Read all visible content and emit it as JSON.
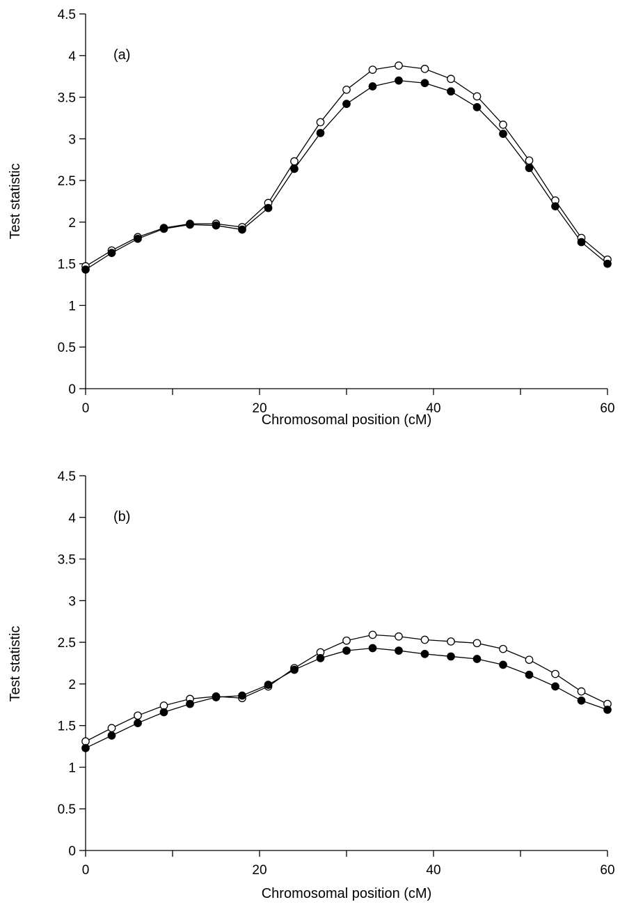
{
  "chart_data": [
    {
      "type": "line",
      "panel_label": "(a)",
      "xlabel": "Chromosomal position (cM)",
      "ylabel": "Test statistic",
      "xlim": [
        0,
        60
      ],
      "ylim": [
        0,
        4.5
      ],
      "xticks": [
        0,
        20,
        40,
        60
      ],
      "xminor": [
        10,
        30,
        50
      ],
      "yticks": [
        0,
        0.5,
        1,
        1.5,
        2,
        2.5,
        3,
        3.5,
        4,
        4.5
      ],
      "x": [
        0,
        3,
        6,
        9,
        12,
        15,
        18,
        21,
        24,
        27,
        30,
        33,
        36,
        39,
        42,
        45,
        48,
        51,
        54,
        57,
        60
      ],
      "grid": false,
      "series": [
        {
          "marker": "open-circle",
          "color": "#000000",
          "values": [
            1.47,
            1.66,
            1.82,
            1.93,
            1.98,
            1.98,
            1.94,
            2.23,
            2.73,
            3.2,
            3.59,
            3.83,
            3.88,
            3.84,
            3.72,
            3.51,
            3.17,
            2.74,
            2.26,
            1.81,
            1.55
          ]
        },
        {
          "marker": "filled-circle",
          "color": "#000000",
          "values": [
            1.43,
            1.63,
            1.8,
            1.92,
            1.97,
            1.96,
            1.91,
            2.17,
            2.64,
            3.07,
            3.42,
            3.63,
            3.7,
            3.67,
            3.57,
            3.38,
            3.06,
            2.65,
            2.19,
            1.76,
            1.5
          ]
        }
      ]
    },
    {
      "type": "line",
      "panel_label": "(b)",
      "xlabel": "Chromosomal position (cM)",
      "ylabel": "Test statistic",
      "xlim": [
        0,
        60
      ],
      "ylim": [
        0,
        4.5
      ],
      "xticks": [
        0,
        20,
        40,
        60
      ],
      "xminor": [
        10,
        30,
        50
      ],
      "yticks": [
        0,
        0.5,
        1,
        1.5,
        2,
        2.5,
        3,
        3.5,
        4,
        4.5
      ],
      "x": [
        0,
        3,
        6,
        9,
        12,
        15,
        18,
        21,
        24,
        27,
        30,
        33,
        36,
        39,
        42,
        45,
        48,
        51,
        54,
        57,
        60
      ],
      "grid": false,
      "series": [
        {
          "marker": "open-circle",
          "color": "#000000",
          "values": [
            1.31,
            1.47,
            1.62,
            1.74,
            1.82,
            1.85,
            1.83,
            1.97,
            2.19,
            2.38,
            2.52,
            2.59,
            2.57,
            2.53,
            2.51,
            2.49,
            2.42,
            2.29,
            2.12,
            1.91,
            1.76
          ]
        },
        {
          "marker": "filled-circle",
          "color": "#000000",
          "values": [
            1.23,
            1.38,
            1.53,
            1.66,
            1.76,
            1.84,
            1.86,
            1.99,
            2.17,
            2.31,
            2.4,
            2.43,
            2.4,
            2.36,
            2.33,
            2.3,
            2.23,
            2.11,
            1.97,
            1.8,
            1.69
          ]
        }
      ]
    }
  ]
}
